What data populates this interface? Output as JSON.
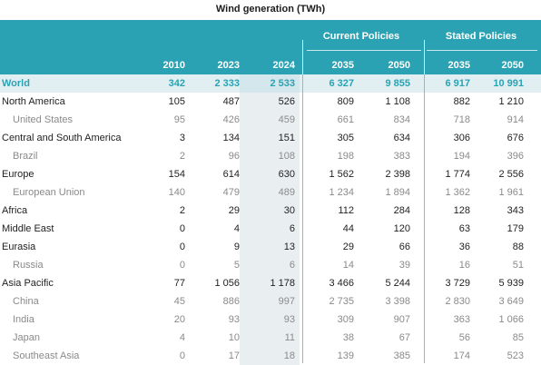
{
  "title": "Wind generation (TWh)",
  "groups": {
    "current": "Current Policies",
    "stated": "Stated Policies"
  },
  "years": [
    "2010",
    "2023",
    "2024",
    "2035",
    "2050",
    "2035",
    "2050"
  ],
  "rows": [
    {
      "label": "World",
      "type": "world",
      "values": [
        "342",
        "2 333",
        "2 533",
        "6 327",
        "9 855",
        "6 917",
        "10 991"
      ]
    },
    {
      "label": "North America",
      "type": "main",
      "values": [
        "105",
        "487",
        "526",
        "809",
        "1 108",
        "882",
        "1 210"
      ]
    },
    {
      "label": "United States",
      "type": "sub",
      "values": [
        "95",
        "426",
        "459",
        "661",
        "834",
        "718",
        "914"
      ]
    },
    {
      "label": "Central and South America",
      "type": "main",
      "values": [
        "3",
        "134",
        "151",
        "305",
        "634",
        "306",
        "676"
      ]
    },
    {
      "label": "Brazil",
      "type": "sub",
      "values": [
        "2",
        "96",
        "108",
        "198",
        "383",
        "194",
        "396"
      ]
    },
    {
      "label": "Europe",
      "type": "main",
      "values": [
        "154",
        "614",
        "630",
        "1 562",
        "2 398",
        "1 774",
        "2 556"
      ]
    },
    {
      "label": "European Union",
      "type": "sub",
      "values": [
        "140",
        "479",
        "489",
        "1 234",
        "1 894",
        "1 362",
        "1 961"
      ]
    },
    {
      "label": "Africa",
      "type": "main",
      "values": [
        "2",
        "29",
        "30",
        "112",
        "284",
        "128",
        "343"
      ]
    },
    {
      "label": "Middle East",
      "type": "main",
      "values": [
        "0",
        "4",
        "6",
        "44",
        "120",
        "63",
        "179"
      ]
    },
    {
      "label": "Eurasia",
      "type": "main",
      "values": [
        "0",
        "9",
        "13",
        "29",
        "66",
        "36",
        "88"
      ]
    },
    {
      "label": "Russia",
      "type": "sub",
      "values": [
        "0",
        "5",
        "6",
        "14",
        "39",
        "16",
        "51"
      ]
    },
    {
      "label": "Asia Pacific",
      "type": "main",
      "values": [
        "77",
        "1 056",
        "1 178",
        "3 466",
        "5 244",
        "3 729",
        "5 939"
      ]
    },
    {
      "label": "China",
      "type": "sub",
      "values": [
        "45",
        "886",
        "997",
        "2 735",
        "3 398",
        "2 830",
        "3 649"
      ]
    },
    {
      "label": "India",
      "type": "sub",
      "values": [
        "20",
        "93",
        "93",
        "309",
        "907",
        "363",
        "1 066"
      ]
    },
    {
      "label": "Japan",
      "type": "sub",
      "values": [
        "4",
        "10",
        "11",
        "38",
        "67",
        "56",
        "85"
      ]
    },
    {
      "label": "Southeast Asia",
      "type": "sub",
      "values": [
        "0",
        "17",
        "18",
        "139",
        "385",
        "174",
        "523"
      ]
    }
  ],
  "colors": {
    "header_bg": "#2aa2b3",
    "world_text": "#2aa2b3",
    "world_bg": "#e2eff2",
    "highlight_col": "#e9eef1",
    "sub_text": "#8a8a8a"
  }
}
